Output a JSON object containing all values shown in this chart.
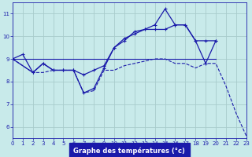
{
  "background_color": "#c8eaea",
  "grid_color": "#a8cccc",
  "line_color": "#1a1aaa",
  "xlabel": "Graphe des températures (°c)",
  "ylim": [
    5.5,
    11.5
  ],
  "xlim": [
    0,
    23
  ],
  "yticks": [
    6,
    7,
    8,
    9,
    10,
    11
  ],
  "xticks": [
    0,
    1,
    2,
    3,
    4,
    5,
    6,
    7,
    8,
    9,
    10,
    11,
    12,
    13,
    14,
    15,
    16,
    17,
    18,
    19,
    20,
    21,
    22,
    23
  ],
  "line1": {
    "x": [
      0,
      20
    ],
    "y": [
      9.0,
      9.0
    ],
    "style": "-",
    "marker": null,
    "lw": 0.8
  },
  "line2": {
    "x": [
      0,
      2,
      3,
      4,
      5,
      6,
      7,
      8,
      9,
      10,
      11,
      12,
      13,
      14,
      15,
      16,
      17,
      18,
      19,
      20,
      21,
      22,
      23
    ],
    "y": [
      9.0,
      8.4,
      8.4,
      8.5,
      8.5,
      8.5,
      7.5,
      7.6,
      8.5,
      8.5,
      8.7,
      8.8,
      8.9,
      9.0,
      9.0,
      8.8,
      8.8,
      8.6,
      8.8,
      8.8,
      7.8,
      6.6,
      5.6
    ],
    "style": "--",
    "marker": null,
    "lw": 0.8
  },
  "line3": {
    "x": [
      0,
      1,
      2,
      3,
      4,
      5,
      6,
      7,
      8,
      9,
      10,
      11,
      12,
      13,
      14,
      15,
      16,
      17,
      18,
      19,
      20
    ],
    "y": [
      9.0,
      9.2,
      8.4,
      8.8,
      8.5,
      8.5,
      8.5,
      7.5,
      7.7,
      8.6,
      9.5,
      9.8,
      10.2,
      10.3,
      10.5,
      11.2,
      10.5,
      10.5,
      9.8,
      9.8,
      9.8
    ],
    "style": "-",
    "marker": "+",
    "lw": 0.9,
    "ms": 3
  },
  "line4": {
    "x": [
      0,
      2,
      3,
      4,
      5,
      6,
      7,
      8,
      9,
      10,
      11,
      12,
      13,
      14,
      15,
      16,
      17,
      18,
      19,
      20
    ],
    "y": [
      9.0,
      8.4,
      8.8,
      8.5,
      8.5,
      8.5,
      8.3,
      8.5,
      8.7,
      9.5,
      9.9,
      10.1,
      10.3,
      10.3,
      10.3,
      10.5,
      10.5,
      9.8,
      8.8,
      9.8
    ],
    "style": "-",
    "marker": "+",
    "lw": 0.9,
    "ms": 3
  }
}
